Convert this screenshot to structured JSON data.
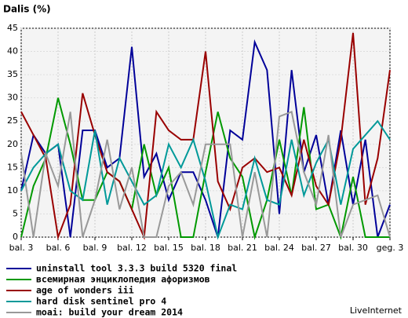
{
  "chart_data": {
    "type": "line",
    "title": "Dalis (%)",
    "categories": [
      "bal. 3",
      null,
      null,
      "bal. 6",
      null,
      null,
      "bal. 9",
      null,
      null,
      "bal. 12",
      null,
      null,
      "bal. 15",
      null,
      null,
      "bal. 18",
      null,
      null,
      "bal. 21",
      null,
      null,
      "bal. 24",
      null,
      null,
      "bal. 27",
      null,
      null,
      "bal. 30",
      null,
      null,
      "geg. 3"
    ],
    "ylim": [
      0,
      45
    ],
    "yticks": [
      0,
      5,
      10,
      15,
      20,
      25,
      30,
      35,
      40,
      45
    ],
    "grid": true,
    "series": [
      {
        "name": "uninstall tool 3.3.3 build 5320 final",
        "color": "#000099",
        "values": [
          10,
          22,
          18,
          20,
          0,
          23,
          23,
          15,
          17,
          41,
          13,
          18,
          8,
          14,
          14,
          8,
          0,
          23,
          21,
          42,
          36,
          5,
          36,
          14,
          22,
          7,
          23,
          7,
          21,
          0,
          7
        ]
      },
      {
        "name": "всемирная энциклопедия афоризмов",
        "color": "#009900",
        "values": [
          0,
          11,
          17,
          30,
          20,
          8,
          8,
          14,
          12,
          6,
          20,
          9,
          15,
          0,
          0,
          14,
          27,
          17,
          13,
          0,
          8,
          21,
          9,
          28,
          6,
          7,
          0,
          13,
          0,
          0,
          0
        ]
      },
      {
        "name": "age of wonders iii",
        "color": "#990000",
        "values": [
          27,
          22,
          17,
          0,
          7,
          31,
          22,
          14,
          12,
          6,
          0,
          27,
          23,
          21,
          21,
          40,
          12,
          6,
          15,
          17,
          14,
          15,
          9,
          21,
          11,
          7,
          21,
          44,
          7,
          17,
          36
        ]
      },
      {
        "name": "hard disk sentinel pro 4",
        "color": "#009999",
        "values": [
          10,
          15,
          18,
          20,
          10,
          8,
          23,
          7,
          17,
          12,
          7,
          9,
          20,
          15,
          21,
          12,
          0,
          7,
          6,
          17,
          8,
          7,
          21,
          9,
          16,
          21,
          7,
          19,
          22,
          25,
          21
        ]
      },
      {
        "name": "moai: build your dream 2014",
        "color": "#999999",
        "values": [
          18,
          0,
          18,
          11,
          27,
          0,
          8,
          21,
          6,
          15,
          0,
          0,
          11,
          14,
          7,
          20,
          20,
          20,
          0,
          14,
          0,
          26,
          27,
          14,
          7,
          22,
          0,
          7,
          8,
          9,
          0
        ]
      }
    ],
    "footer": "LiveInternet"
  }
}
